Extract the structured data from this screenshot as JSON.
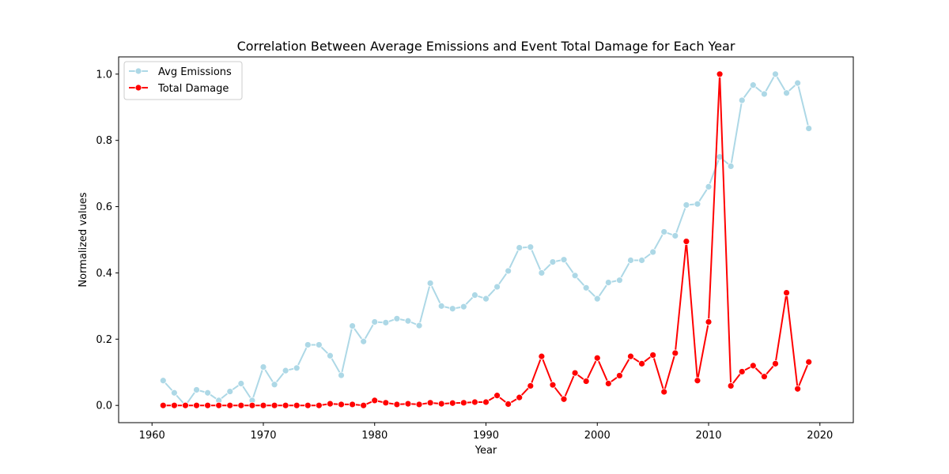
{
  "chart_data": {
    "type": "line",
    "title": "Correlation Between Average Emissions and Event Total Damage for Each Year",
    "xlabel": "Year",
    "ylabel": "Normalized values",
    "xlim": [
      1957,
      2023
    ],
    "ylim": [
      -0.052,
      1.052
    ],
    "xticks": [
      1960,
      1970,
      1980,
      1990,
      2000,
      2010,
      2020
    ],
    "yticks": [
      0.0,
      0.2,
      0.4,
      0.6,
      0.8,
      1.0
    ],
    "grid": false,
    "legend_position": "top-left",
    "x": [
      1961,
      1962,
      1963,
      1964,
      1965,
      1966,
      1967,
      1968,
      1969,
      1970,
      1971,
      1972,
      1973,
      1974,
      1975,
      1976,
      1977,
      1978,
      1979,
      1980,
      1981,
      1982,
      1983,
      1984,
      1985,
      1986,
      1987,
      1988,
      1989,
      1990,
      1991,
      1992,
      1993,
      1994,
      1995,
      1996,
      1997,
      1998,
      1999,
      2000,
      2001,
      2002,
      2003,
      2004,
      2005,
      2006,
      2007,
      2008,
      2009,
      2010,
      2011,
      2012,
      2013,
      2014,
      2015,
      2016,
      2017,
      2018,
      2019
    ],
    "series": [
      {
        "name": "Avg Emissions",
        "color": "#add8e6",
        "values": [
          0.075,
          0.038,
          0.0,
          0.047,
          0.038,
          0.015,
          0.042,
          0.066,
          0.015,
          0.116,
          0.063,
          0.105,
          0.113,
          0.183,
          0.183,
          0.15,
          0.091,
          0.24,
          0.193,
          0.252,
          0.25,
          0.262,
          0.255,
          0.241,
          0.369,
          0.3,
          0.292,
          0.298,
          0.333,
          0.322,
          0.358,
          0.406,
          0.476,
          0.478,
          0.4,
          0.433,
          0.44,
          0.392,
          0.355,
          0.322,
          0.371,
          0.378,
          0.438,
          0.438,
          0.463,
          0.524,
          0.512,
          0.605,
          0.608,
          0.66,
          0.75,
          0.722,
          0.921,
          0.967,
          0.94,
          1.0,
          0.943,
          0.973,
          0.836
        ]
      },
      {
        "name": "Total Damage",
        "color": "#ff0000",
        "values": [
          0.0,
          0.0,
          0.0,
          0.0,
          0.0,
          0.0,
          0.0,
          0.0,
          0.0,
          0.0,
          0.0,
          0.0,
          0.0,
          0.0,
          0.0,
          0.005,
          0.003,
          0.003,
          0.0,
          0.015,
          0.008,
          0.003,
          0.005,
          0.003,
          0.008,
          0.005,
          0.007,
          0.008,
          0.01,
          0.01,
          0.03,
          0.004,
          0.024,
          0.059,
          0.148,
          0.062,
          0.019,
          0.098,
          0.073,
          0.143,
          0.066,
          0.09,
          0.148,
          0.126,
          0.152,
          0.041,
          0.158,
          0.495,
          0.075,
          0.252,
          1.0,
          0.059,
          0.102,
          0.12,
          0.087,
          0.126,
          0.34,
          0.05,
          0.131
        ]
      }
    ]
  }
}
